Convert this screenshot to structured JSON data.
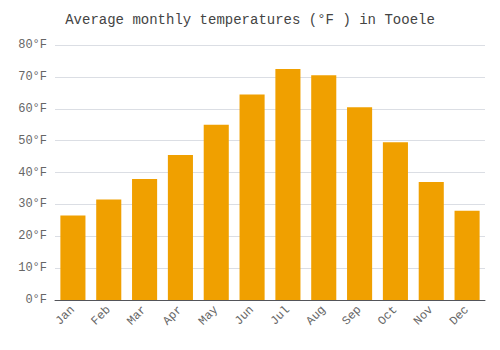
{
  "chart_data": {
    "type": "bar",
    "title": "Average monthly temperatures (°F ) in Tooele",
    "categories": [
      "Jan",
      "Feb",
      "Mar",
      "Apr",
      "May",
      "Jun",
      "Jul",
      "Aug",
      "Sep",
      "Oct",
      "Nov",
      "Dec"
    ],
    "values": [
      26.5,
      31.5,
      38,
      45.5,
      55,
      64.5,
      72.5,
      70.5,
      60.5,
      49.5,
      37,
      28
    ],
    "color": "#F0A000",
    "ylim": [
      0,
      80
    ],
    "yticks": [
      {
        "value": 0,
        "label": "0°F"
      },
      {
        "value": 10,
        "label": "10°F"
      },
      {
        "value": 20,
        "label": "20°F"
      },
      {
        "value": 30,
        "label": "30°F"
      },
      {
        "value": 40,
        "label": "40°F"
      },
      {
        "value": 50,
        "label": "50°F"
      },
      {
        "value": 60,
        "label": "60°F"
      },
      {
        "value": 70,
        "label": "70°F"
      },
      {
        "value": 80,
        "label": "80°F"
      }
    ],
    "grid": true
  }
}
